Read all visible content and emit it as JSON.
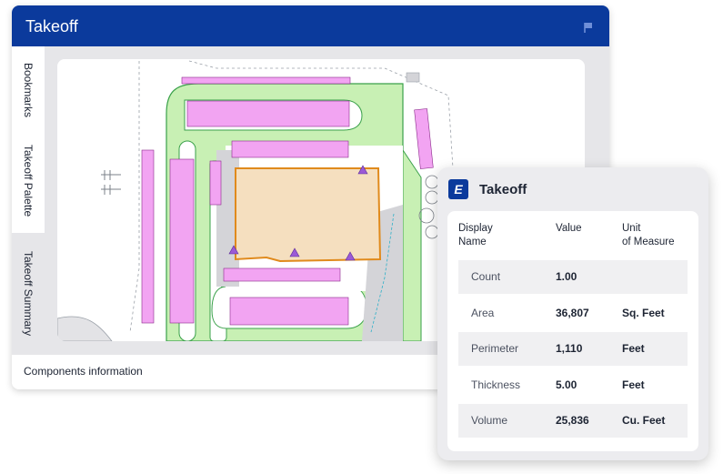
{
  "window": {
    "title": "Takeoff",
    "tabs": [
      "Bookmarks",
      "Takeoff Palette",
      "Takeoff Summary"
    ],
    "footer": "Components information"
  },
  "card": {
    "logo_letter": "E",
    "title": "Takeoff",
    "headers": {
      "display_name": [
        "Display",
        "Name"
      ],
      "value": "Value",
      "unit": [
        "Unit",
        "of Measure"
      ]
    },
    "rows": [
      {
        "name": "Count",
        "value": "1.00",
        "unit": ""
      },
      {
        "name": "Area",
        "value": "36,807",
        "unit": "Sq. Feet"
      },
      {
        "name": "Perimeter",
        "value": "1,110",
        "unit": "Feet"
      },
      {
        "name": "Thickness",
        "value": "5.00",
        "unit": "Feet"
      },
      {
        "name": "Volume",
        "value": "25,836",
        "unit": "Cu. Feet"
      }
    ]
  },
  "colors": {
    "brand": "#0b3a9c",
    "paving": "#c8f0b4",
    "parking": "#f2a4f2",
    "building_fill": "#f5dfbf",
    "building_outline": "#e08a1c",
    "marker": "#9b59d6"
  }
}
